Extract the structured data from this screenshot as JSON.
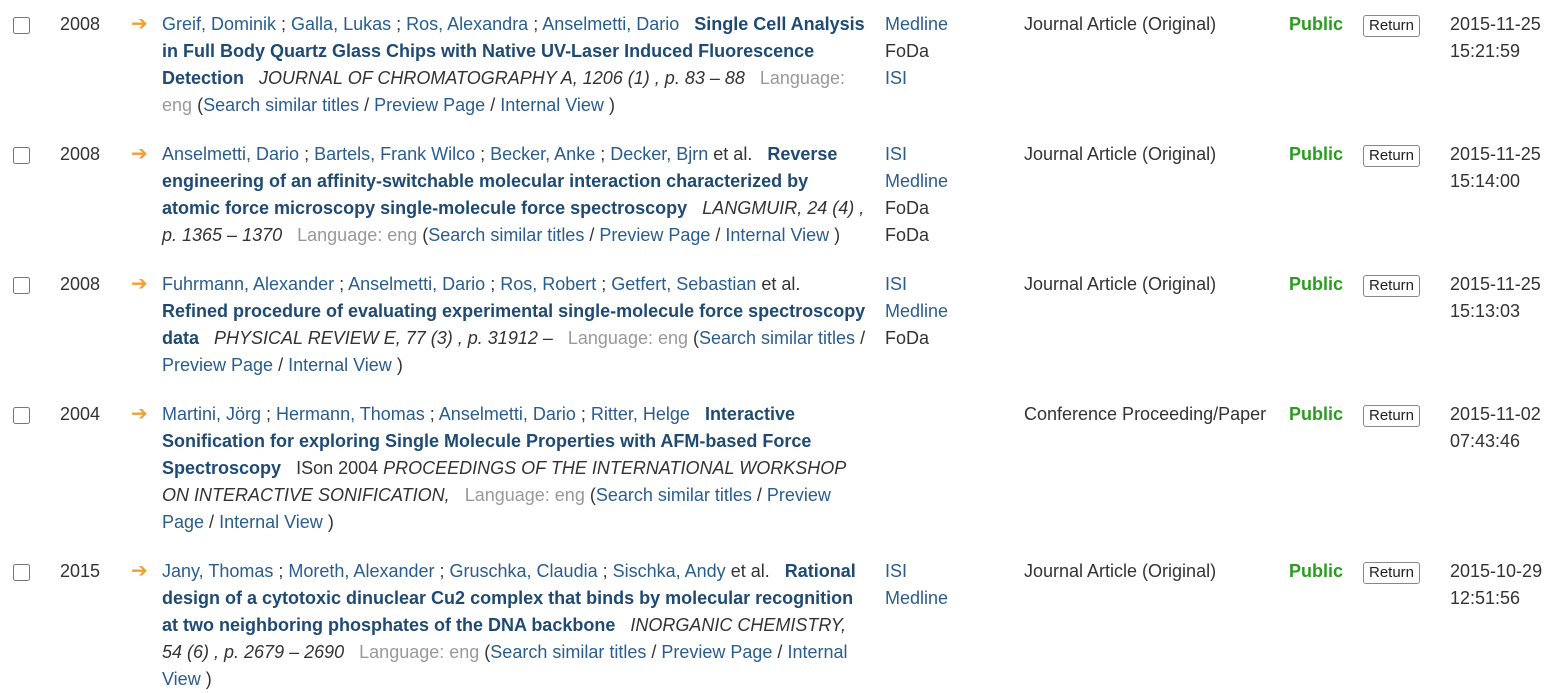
{
  "rows": [
    {
      "year": "2008",
      "authors": [
        "Greif, Dominik",
        "Galla, Lukas",
        "Ros, Alexandra",
        "Anselmetti, Dario"
      ],
      "et_al": "",
      "title": "Single Cell Analysis in Full Body Quartz Glass Chips with Native UV-Laser Induced Fluorescence Detection",
      "conference": "",
      "journal": "JOURNAL OF CHROMATOGRAPHY A, 1206 (1) , p. 83 – 88",
      "language": "Language: eng",
      "links": {
        "open": "(",
        "similar": "Search similar titles",
        "preview": "Preview Page",
        "internal": "Internal View",
        "close": ")"
      },
      "sources": [
        {
          "label": "Medline",
          "link": true
        },
        {
          "label": "FoDa",
          "link": false
        },
        {
          "label": "ISI",
          "link": true
        }
      ],
      "type": "Journal Article (Original)",
      "status": "Public",
      "action": "Return",
      "date": "2015-11-25",
      "time": "15:21:59"
    },
    {
      "year": "2008",
      "authors": [
        "Anselmetti, Dario",
        "Bartels, Frank Wilco",
        "Becker, Anke",
        "Decker, Bjrn"
      ],
      "et_al": "et al.",
      "title": "Reverse engineering of an affinity-switchable molecular interaction characterized by atomic force microscopy single-molecule force spectroscopy",
      "conference": "",
      "journal": "LANGMUIR, 24 (4) , p. 1365 – 1370",
      "language": "Language: eng",
      "links": {
        "open": "(",
        "similar": "Search similar titles",
        "preview": "Preview Page",
        "internal": "Internal View",
        "close": ")"
      },
      "sources": [
        {
          "label": "ISI",
          "link": true
        },
        {
          "label": "Medline",
          "link": true
        },
        {
          "label": "FoDa",
          "link": false
        },
        {
          "label": "FoDa",
          "link": false
        }
      ],
      "type": "Journal Article (Original)",
      "status": "Public",
      "action": "Return",
      "date": "2015-11-25",
      "time": "15:14:00"
    },
    {
      "year": "2008",
      "authors": [
        "Fuhrmann, Alexander",
        "Anselmetti, Dario",
        "Ros, Robert",
        "Getfert, Sebastian"
      ],
      "et_al": "et al.",
      "title": "Refined procedure of evaluating experimental single-molecule force spectroscopy data",
      "conference": "",
      "journal": "PHYSICAL REVIEW E, 77 (3) , p. 31912 –",
      "language": "Language: eng",
      "links": {
        "open": "(",
        "similar": "Search similar titles",
        "preview": "Preview Page",
        "internal": "Internal View",
        "close": ")"
      },
      "sources": [
        {
          "label": "ISI",
          "link": true
        },
        {
          "label": "Medline",
          "link": true
        },
        {
          "label": "FoDa",
          "link": false
        }
      ],
      "type": "Journal Article (Original)",
      "status": "Public",
      "action": "Return",
      "date": "2015-11-25",
      "time": "15:13:03"
    },
    {
      "year": "2004",
      "authors": [
        "Martini, Jörg",
        "Hermann, Thomas",
        "Anselmetti, Dario",
        "Ritter, Helge"
      ],
      "et_al": "",
      "title": "Interactive Sonification for exploring Single Molecule Properties with AFM-based Force Spectroscopy",
      "conference": "ISon 2004",
      "journal": "PROCEEDINGS OF THE INTERNATIONAL WORKSHOP ON INTERACTIVE SONIFICATION,",
      "language": "Language: eng",
      "links": {
        "open": "(",
        "similar": "Search similar titles",
        "preview": "Preview Page",
        "internal": "Internal View",
        "close": ")"
      },
      "sources": [],
      "type": "Conference Proceeding/Paper",
      "status": "Public",
      "action": "Return",
      "date": "2015-11-02",
      "time": "07:43:46"
    },
    {
      "year": "2015",
      "authors": [
        "Jany, Thomas",
        "Moreth, Alexander",
        "Gruschka, Claudia",
        "Sischka, Andy"
      ],
      "et_al": "et al.",
      "title": "Rational design of a cytotoxic dinuclear Cu2 complex that binds by molecular recognition at two neighboring phosphates of the DNA backbone",
      "conference": "",
      "journal": "INORGANIC CHEMISTRY, 54 (6) , p. 2679 – 2690",
      "language": "Language: eng",
      "links": {
        "open": "(",
        "similar": "Search similar titles",
        "preview": "Preview Page",
        "internal": "Internal View",
        "close": ")"
      },
      "sources": [
        {
          "label": "ISI",
          "link": true
        },
        {
          "label": "Medline",
          "link": true
        }
      ],
      "type": "Journal Article (Original)",
      "status": "Public",
      "action": "Return",
      "date": "2015-10-29",
      "time": "12:51:56"
    }
  ],
  "icons": {
    "row_arrow": "right-arrow-icon"
  },
  "colors": {
    "link": "#2a5d8f",
    "title": "#1e4a73",
    "status_public": "#2a9d1e",
    "arrow": "#f0a030",
    "muted": "#999999"
  }
}
